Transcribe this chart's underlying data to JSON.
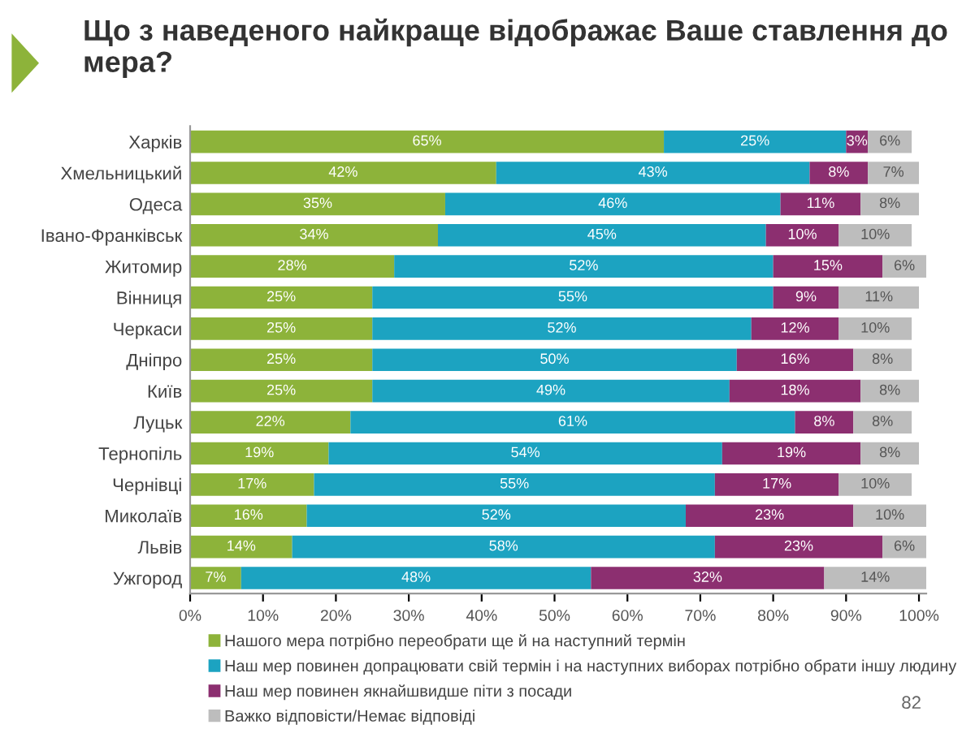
{
  "chart_data": {
    "type": "bar",
    "orientation": "horizontal",
    "stacked": true,
    "title": "Що з наведеного найкраще відображає Ваше ставлення до мера?",
    "categories": [
      "Харків",
      "Хмельницький",
      "Одеса",
      "Івано-Франківськ",
      "Житомир",
      "Вінниця",
      "Черкаси",
      "Дніпро",
      "Київ",
      "Луцьк",
      "Тернопіль",
      "Чернівці",
      "Миколаїв",
      "Львів",
      "Ужгород"
    ],
    "series": [
      {
        "name": "Нашого мера потрібно переобрати ще й на наступний термін",
        "color": "#8db33a",
        "values": [
          65,
          42,
          35,
          34,
          28,
          25,
          25,
          25,
          25,
          22,
          19,
          17,
          16,
          14,
          7
        ],
        "value_labels": [
          "65%",
          "42%",
          "35%",
          "34%",
          "28%",
          "25%",
          "25%",
          "25%",
          "25%",
          "22%",
          "19%",
          "17%",
          "16%",
          "14%",
          "7%"
        ]
      },
      {
        "name": "Наш мер повинен допрацювати свій термін і на наступних виборах потрібно обрати іншу людину",
        "color": "#1ca3c1",
        "values": [
          25,
          43,
          46,
          45,
          52,
          55,
          52,
          50,
          49,
          61,
          54,
          55,
          52,
          58,
          48
        ],
        "value_labels": [
          "25%",
          "43%",
          "46%",
          "45%",
          "52%",
          "55%",
          "52%",
          "50%",
          "49%",
          "61%",
          "54%",
          "55%",
          "52%",
          "58%",
          "48%"
        ]
      },
      {
        "name": "Наш мер повинен якнайшвидше піти з посади",
        "color": "#8c2f70",
        "values": [
          3,
          8,
          11,
          10,
          15,
          9,
          12,
          16,
          18,
          8,
          19,
          17,
          23,
          23,
          32
        ],
        "value_labels": [
          "3%",
          "8%",
          "11%",
          "10%",
          "15%",
          "9%",
          "12%",
          "16%",
          "18%",
          "8%",
          "19%",
          "17%",
          "23%",
          "23%",
          "32%"
        ]
      },
      {
        "name": "Важко відповісти/Немає відповіді",
        "color": "#bdbdbd",
        "values": [
          6,
          7,
          8,
          10,
          6,
          11,
          10,
          8,
          8,
          8,
          8,
          10,
          10,
          6,
          14
        ],
        "value_labels": [
          "6%",
          "7%",
          "8%",
          "10%",
          "6%",
          "11%",
          "10%",
          "8%",
          "8%",
          "8%",
          "8%",
          "10%",
          "10%",
          "6%",
          "14%"
        ]
      }
    ],
    "xlim": [
      0,
      101
    ],
    "xticks": [
      {
        "value": 0,
        "label": "0%"
      },
      {
        "value": 10,
        "label": "10%"
      },
      {
        "value": 20,
        "label": "20%"
      },
      {
        "value": 30,
        "label": "30%"
      },
      {
        "value": 40,
        "label": "40%"
      },
      {
        "value": 50,
        "label": "50%"
      },
      {
        "value": 60,
        "label": "60%"
      },
      {
        "value": 70,
        "label": "70%"
      },
      {
        "value": 80,
        "label": "80%"
      },
      {
        "value": 90,
        "label": "90%"
      },
      {
        "value": 100,
        "label": "100%"
      }
    ],
    "legend": "bottom",
    "grid": false,
    "annotations": [
      "82"
    ]
  }
}
